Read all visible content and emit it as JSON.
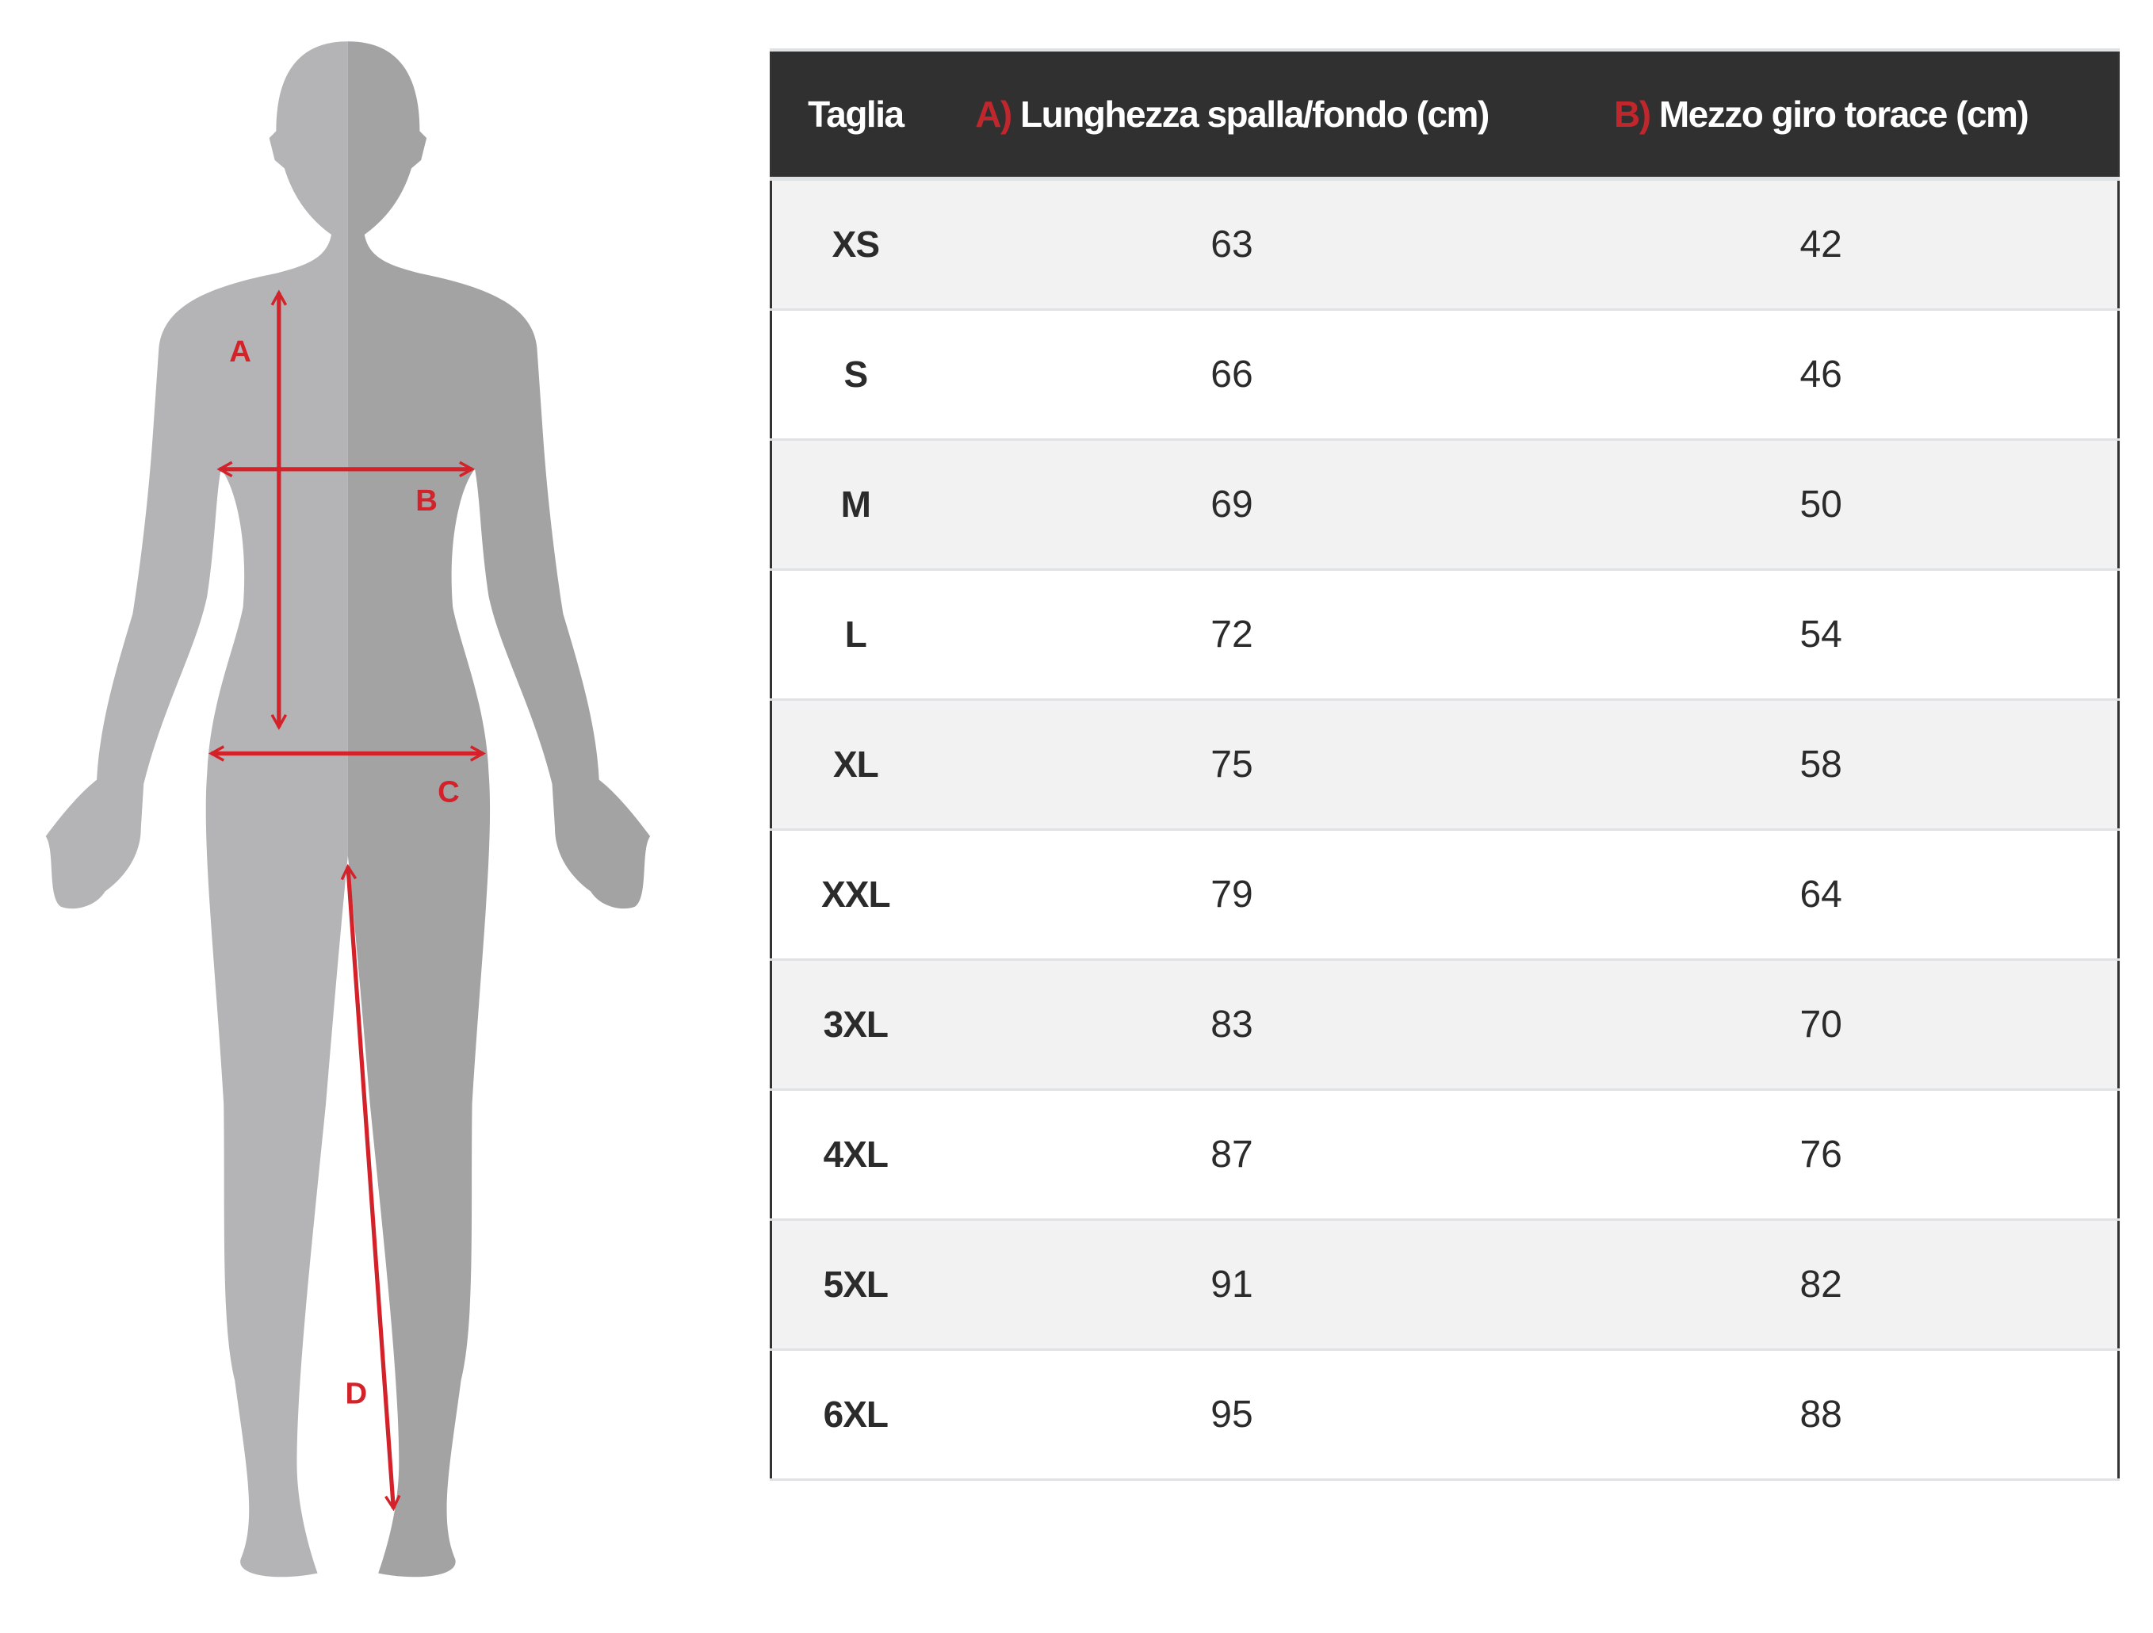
{
  "colors": {
    "header_bg": "#303030",
    "accent": "#c0272d",
    "arrow": "#d3222a",
    "body_left": "#b4b4b6",
    "body_right": "#a3a3a3",
    "row_alt": "#f2f2f2"
  },
  "figure": {
    "labels": {
      "a": "A",
      "b": "B",
      "c": "C",
      "d": "D"
    }
  },
  "table": {
    "headers": [
      {
        "prefix": "",
        "label": "Taglia"
      },
      {
        "prefix": "A)",
        "label": " Lunghezza spalla/fondo (cm)"
      },
      {
        "prefix": "B)",
        "label": " Mezzo giro torace (cm)"
      }
    ],
    "rows": [
      {
        "size": "XS",
        "a": "63",
        "b": "42"
      },
      {
        "size": "S",
        "a": "66",
        "b": "46"
      },
      {
        "size": "M",
        "a": "69",
        "b": "50"
      },
      {
        "size": "L",
        "a": "72",
        "b": "54"
      },
      {
        "size": "XL",
        "a": "75",
        "b": "58"
      },
      {
        "size": "XXL",
        "a": "79",
        "b": "64"
      },
      {
        "size": "3XL",
        "a": "83",
        "b": "70"
      },
      {
        "size": "4XL",
        "a": "87",
        "b": "76"
      },
      {
        "size": "5XL",
        "a": "91",
        "b": "82"
      },
      {
        "size": "6XL",
        "a": "95",
        "b": "88"
      }
    ]
  }
}
